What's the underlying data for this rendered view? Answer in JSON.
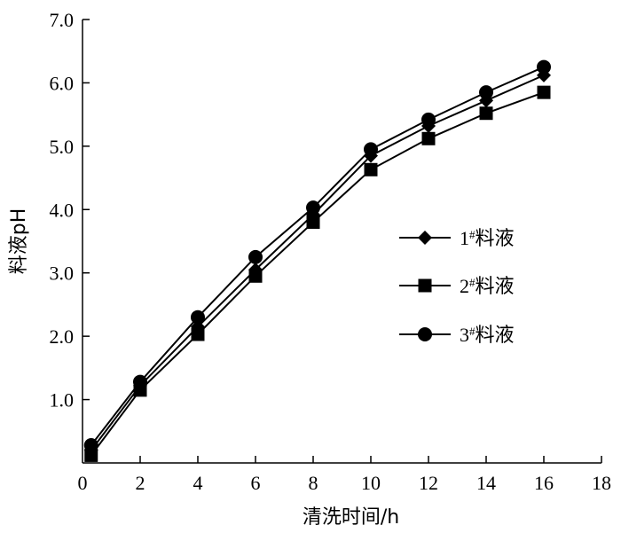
{
  "chart_data": {
    "type": "line",
    "title": "",
    "xlabel": "清洗时间/h",
    "ylabel": "料液pH",
    "xlim": [
      0,
      18
    ],
    "ylim": [
      0,
      7
    ],
    "x_ticks": [
      0,
      2,
      4,
      6,
      8,
      10,
      12,
      14,
      16,
      18
    ],
    "y_ticks": [
      1.0,
      2.0,
      3.0,
      4.0,
      5.0,
      6.0,
      7.0
    ],
    "x_tick_labels": [
      "0",
      "2",
      "4",
      "6",
      "8",
      "10",
      "12",
      "14",
      "16",
      "18"
    ],
    "y_tick_labels": [
      "1.0",
      "2.0",
      "3.0",
      "4.0",
      "5.0",
      "6.0",
      "7.0"
    ],
    "grid": false,
    "legend_position": "right-middle",
    "series": [
      {
        "name": "1#料液",
        "legend_main": "1",
        "legend_sup": "#",
        "legend_rest": "料液",
        "marker": "diamond",
        "x": [
          0.3,
          2,
          4,
          6,
          8,
          10,
          12,
          14,
          16
        ],
        "y": [
          0.2,
          1.22,
          2.15,
          3.05,
          3.92,
          4.85,
          5.32,
          5.72,
          6.12
        ]
      },
      {
        "name": "2#料液",
        "legend_main": "2",
        "legend_sup": "#",
        "legend_rest": "料液",
        "marker": "square",
        "x": [
          0.3,
          2,
          4,
          6,
          8,
          10,
          12,
          14,
          16
        ],
        "y": [
          0.12,
          1.15,
          2.03,
          2.95,
          3.8,
          4.63,
          5.12,
          5.52,
          5.85
        ]
      },
      {
        "name": "3#料液",
        "legend_main": "3",
        "legend_sup": "#",
        "legend_rest": "料液",
        "marker": "circle",
        "x": [
          0.3,
          2,
          4,
          6,
          8,
          10,
          12,
          14,
          16
        ],
        "y": [
          0.28,
          1.28,
          2.3,
          3.25,
          4.03,
          4.95,
          5.42,
          5.85,
          6.25
        ]
      }
    ]
  }
}
